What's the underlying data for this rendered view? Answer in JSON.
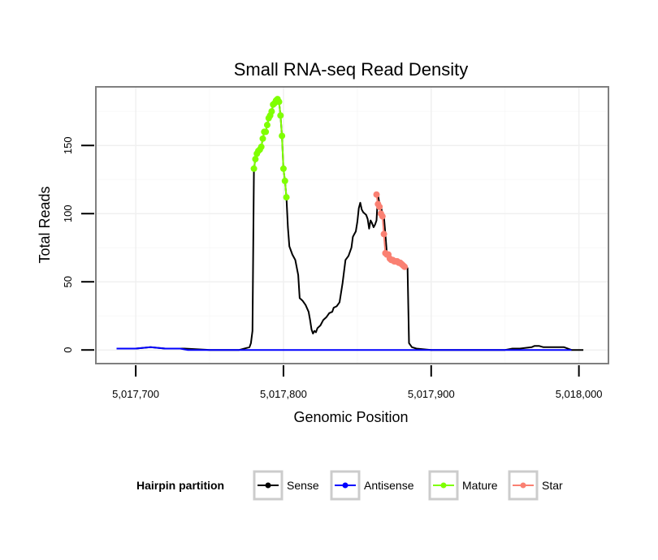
{
  "chart_data": {
    "type": "line",
    "title": "Small RNA-seq Read Density",
    "xlabel": "Genomic Position",
    "ylabel": "Total Reads",
    "xlim": [
      5017673,
      5018020
    ],
    "ylim": [
      -10,
      193
    ],
    "x_ticks": [
      5017700,
      5017800,
      5017900,
      5018000
    ],
    "x_tick_labels": [
      "5,017,700",
      "5,017,800",
      "5,017,900",
      "5,018,000"
    ],
    "y_ticks": [
      0,
      50,
      100,
      150
    ],
    "y_tick_labels": [
      "0",
      "50",
      "100",
      "150"
    ],
    "grid": true,
    "legend_title": "Hairpin partition",
    "legend_position": "bottom",
    "series": [
      {
        "name": "Sense",
        "color": "#000000",
        "x": [
          5017687,
          5017700,
          5017710,
          5017720,
          5017733,
          5017750,
          5017770,
          5017777,
          5017778,
          5017779,
          5017780,
          5017781,
          5017782,
          5017783,
          5017784,
          5017785,
          5017786,
          5017787,
          5017788,
          5017789,
          5017790,
          5017791,
          5017792,
          5017793,
          5017794,
          5017795,
          5017796,
          5017797,
          5017798,
          5017799,
          5017800,
          5017801,
          5017802,
          5017803,
          5017804,
          5017806,
          5017808,
          5017810,
          5017811,
          5017812,
          5017813,
          5017815,
          5017817,
          5017818,
          5017819,
          5017820,
          5017821,
          5017822,
          5017823,
          5017825,
          5017827,
          5017829,
          5017831,
          5017833,
          5017834,
          5017836,
          5017838,
          5017840,
          5017842,
          5017844,
          5017846,
          5017847,
          5017848,
          5017849,
          5017850,
          5017851,
          5017852,
          5017853,
          5017854,
          5017855,
          5017856,
          5017857,
          5017858,
          5017859,
          5017860,
          5017861,
          5017862,
          5017863,
          5017864,
          5017865,
          5017866,
          5017867,
          5017868,
          5017869,
          5017870,
          5017871,
          5017872,
          5017873,
          5017874,
          5017875,
          5017876,
          5017877,
          5017878,
          5017879,
          5017880,
          5017881,
          5017882,
          5017883,
          5017884,
          5017885,
          5017887,
          5017890,
          5017900,
          5017950,
          5017955,
          5017960,
          5017968,
          5017970,
          5017973,
          5017976,
          5017980,
          5017990,
          5017995,
          5018003
        ],
        "values": [
          1,
          1,
          2,
          1,
          1,
          0,
          0,
          2,
          5,
          14,
          133,
          140,
          144,
          146,
          147,
          149,
          155,
          160,
          160,
          165,
          170,
          172,
          175,
          180,
          181,
          183,
          184,
          182,
          172,
          157,
          133,
          124,
          112,
          90,
          76,
          70,
          66,
          55,
          38,
          37,
          36,
          33,
          28,
          22,
          15,
          12,
          14,
          13,
          16,
          18,
          22,
          24,
          27,
          28,
          31,
          32,
          35,
          49,
          66,
          69,
          75,
          83,
          85,
          87,
          94,
          104,
          108,
          103,
          101,
          100,
          99,
          96,
          89,
          95,
          93,
          90,
          92,
          95,
          114,
          107,
          105,
          100,
          98,
          85,
          71,
          70,
          70,
          67,
          66,
          66,
          65,
          65,
          65,
          64,
          64,
          63,
          62,
          61,
          60,
          5,
          2,
          1,
          0,
          0,
          1,
          1,
          2,
          3,
          3,
          2,
          2,
          2,
          0,
          0
        ]
      },
      {
        "name": "Antisense",
        "color": "#0000FF",
        "x": [
          5017687,
          5017700,
          5017710,
          5017720,
          5017730,
          5017735,
          5017995
        ],
        "values": [
          1,
          1,
          2,
          1,
          1,
          0,
          0
        ]
      },
      {
        "name": "Mature",
        "color": "#7FFF00",
        "x": [
          5017780,
          5017781,
          5017782,
          5017783,
          5017784,
          5017785,
          5017786,
          5017787,
          5017788,
          5017789,
          5017790,
          5017791,
          5017792,
          5017793,
          5017794,
          5017795,
          5017796,
          5017797,
          5017798,
          5017799,
          5017800,
          5017801,
          5017802
        ],
        "values": [
          133,
          140,
          144,
          146,
          147,
          149,
          155,
          160,
          160,
          165,
          170,
          172,
          175,
          180,
          181,
          183,
          184,
          182,
          172,
          157,
          133,
          124,
          112
        ]
      },
      {
        "name": "Star",
        "color": "#FA8072",
        "x": [
          5017863,
          5017864,
          5017865,
          5017866,
          5017867,
          5017868,
          5017869,
          5017870,
          5017871,
          5017872,
          5017873,
          5017874,
          5017875,
          5017876,
          5017877,
          5017878,
          5017879,
          5017880,
          5017881,
          5017882
        ],
        "values": [
          114,
          107,
          105,
          100,
          98,
          85,
          71,
          70,
          70,
          67,
          66,
          66,
          65,
          65,
          65,
          64,
          64,
          63,
          62,
          61
        ]
      }
    ]
  }
}
